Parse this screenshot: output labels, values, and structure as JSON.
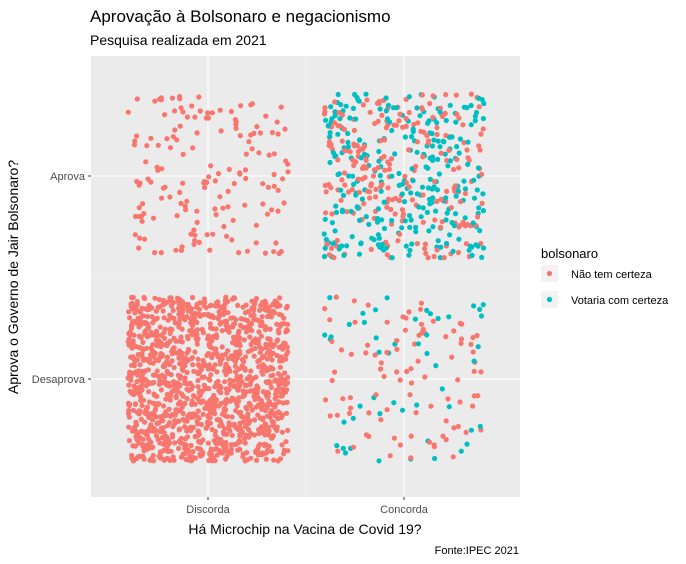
{
  "chart_data": {
    "type": "scatter",
    "title": "Aprovação à Bolsonaro e negacionismo",
    "subtitle": "Pesquisa realizada em 2021",
    "xlabel": "Há Microchip na Vacina de Covid 19?",
    "ylabel": "Aprova o Governo de Jair Bolsonaro?",
    "caption": "Fonte:IPEC 2021",
    "x_categories": [
      "Discorda",
      "Concorda"
    ],
    "y_categories": [
      "Desaprova",
      "Aprova"
    ],
    "jitter": "points jittered within each category cell",
    "grid": true,
    "legend": {
      "title": "bolsonaro",
      "placement": "right",
      "entries": [
        {
          "label": "Não tem certeza",
          "color": "#F8766D"
        },
        {
          "label": "Votaria com certeza",
          "color": "#00BFC4"
        }
      ]
    },
    "panel_background": "#EBEBEB",
    "cells": [
      {
        "x": "Discorda",
        "y": "Aprova",
        "counts": {
          "Não tem certeza": 160,
          "Votaria com certeza": 0
        }
      },
      {
        "x": "Concorda",
        "y": "Aprova",
        "counts": {
          "Não tem certeza": 240,
          "Votaria com certeza": 280
        }
      },
      {
        "x": "Discorda",
        "y": "Desaprova",
        "counts": {
          "Não tem certeza": 1300,
          "Votaria com certeza": 0
        }
      },
      {
        "x": "Concorda",
        "y": "Desaprova",
        "counts": {
          "Não tem certeza": 95,
          "Votaria com certeza": 50
        }
      }
    ]
  }
}
